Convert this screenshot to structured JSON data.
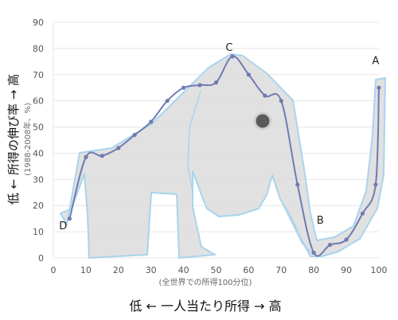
{
  "chart_data": {
    "type": "line",
    "xlim": [
      0,
      100
    ],
    "ylim": [
      0,
      90
    ],
    "xticks": [
      0,
      10,
      20,
      30,
      40,
      50,
      60,
      70,
      80,
      90,
      100
    ],
    "yticks": [
      0,
      10,
      20,
      30,
      40,
      50,
      60,
      70,
      80,
      90
    ],
    "grid": "horizontal",
    "series": [
      {
        "x": [
          5,
          10,
          15,
          20,
          25,
          30,
          35,
          40,
          45,
          50,
          55,
          60,
          65,
          70,
          75,
          80,
          85,
          90,
          95,
          99,
          100
        ],
        "y": [
          15,
          38.5,
          39,
          42,
          47,
          52,
          60,
          65,
          66,
          67,
          77,
          70,
          62,
          60,
          28,
          2,
          5,
          7,
          17,
          28,
          65
        ],
        "color": "#6f7bb0"
      }
    ],
    "annotations": [
      {
        "label": "A",
        "x": 99,
        "y": 74
      },
      {
        "label": "B",
        "x": 82,
        "y": 13
      },
      {
        "label": "C",
        "x": 54,
        "y": 79
      },
      {
        "label": "D",
        "x": 3,
        "y": 11
      }
    ],
    "ylabel": "低 ← 所得の伸び率 → 高",
    "ylabel_sub": "(1988-2008年、%)",
    "xlabel": "低 ← 一人当たり所得 → 高",
    "xlabel_sub": "(全世界での所得100分位)",
    "colors": {
      "line": "#6f7bb0",
      "silhouette_fill": "#dcdcdc",
      "silhouette_outline": "#a9d4ee",
      "grid": "#e6e6e6"
    }
  }
}
